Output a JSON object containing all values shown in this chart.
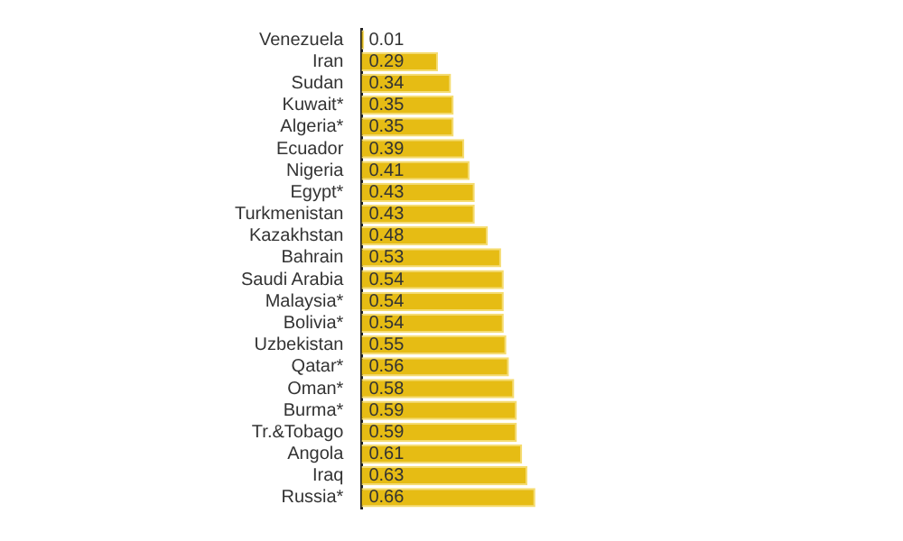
{
  "chart_data": {
    "type": "bar",
    "orientation": "horizontal",
    "categories": [
      "Venezuela",
      "Iran",
      "Sudan",
      "Kuwait*",
      "Algeria*",
      "Ecuador",
      "Nigeria",
      "Egypt*",
      "Turkmenistan",
      "Kazakhstan",
      "Bahrain",
      "Saudi Arabia",
      "Malaysia*",
      "Bolivia*",
      "Uzbekistan",
      "Qatar*",
      "Oman*",
      "Burma*",
      "Tr.&Tobago",
      "Angola",
      "Iraq",
      "Russia*"
    ],
    "values": [
      0.01,
      0.29,
      0.34,
      0.35,
      0.35,
      0.39,
      0.41,
      0.43,
      0.43,
      0.48,
      0.53,
      0.54,
      0.54,
      0.54,
      0.55,
      0.56,
      0.58,
      0.59,
      0.59,
      0.61,
      0.63,
      0.66
    ],
    "color": "#e6bc14",
    "data_labels": true,
    "grid": false,
    "legend": false
  }
}
